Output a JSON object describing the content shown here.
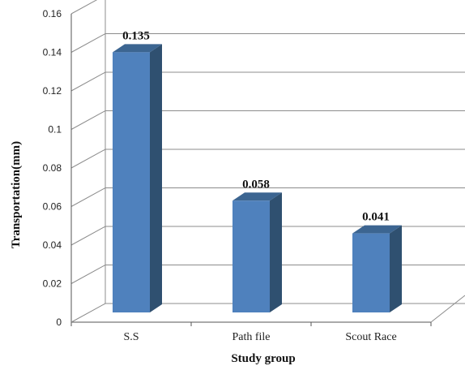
{
  "chart_data": {
    "type": "bar",
    "categories": [
      "S.S",
      "Path file",
      "Scout Race"
    ],
    "values": [
      0.135,
      0.058,
      0.041
    ],
    "data_labels": [
      "0.135",
      "0.058",
      "0.041"
    ],
    "title": "",
    "xlabel": "Study group",
    "ylabel": "Transportation(mm)",
    "ylim": [
      0,
      0.16
    ],
    "yticks": [
      "0",
      "0.02",
      "0.04",
      "0.06",
      "0.08",
      "0.1",
      "0.12",
      "0.14",
      "0.16"
    ],
    "grid": true,
    "legend": "none",
    "style": "3d-column",
    "colors": {
      "bar_front": "#4f81bd",
      "bar_side": "#2f5070",
      "bar_top": "#3c6591",
      "grid": "#8c8c8c"
    }
  }
}
